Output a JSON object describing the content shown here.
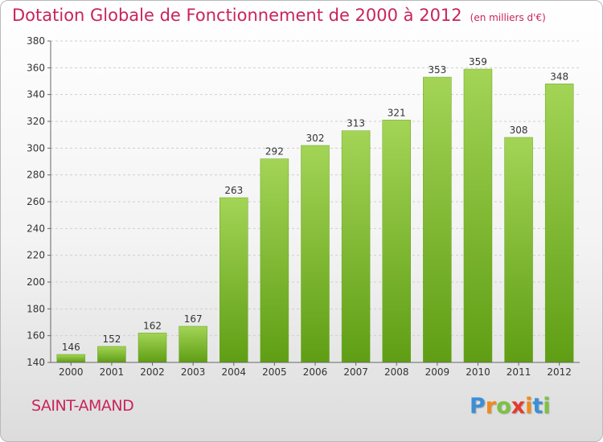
{
  "header": {
    "title": "Dotation Globale de Fonctionnement de 2000 à 2012",
    "units": "(en milliers d'€)"
  },
  "footer": {
    "commune": "SAINT-AMAND",
    "logo": "Proxiti"
  },
  "colors": {
    "title": "#c8245d",
    "bar_light": "#a3d456",
    "bar_dark": "#5f9e14"
  },
  "chart_data": {
    "type": "bar",
    "title": "Dotation Globale de Fonctionnement de 2000 à 2012",
    "categories": [
      "2000",
      "2001",
      "2002",
      "2003",
      "2004",
      "2005",
      "2006",
      "2007",
      "2008",
      "2009",
      "2010",
      "2011",
      "2012"
    ],
    "values": [
      146,
      152,
      162,
      167,
      263,
      292,
      302,
      313,
      321,
      353,
      359,
      308,
      348
    ],
    "xlabel": "",
    "ylabel": "",
    "ylim": [
      140,
      380
    ],
    "yticks": [
      140,
      160,
      180,
      200,
      220,
      240,
      260,
      280,
      300,
      320,
      340,
      360,
      380
    ],
    "grid": true
  }
}
